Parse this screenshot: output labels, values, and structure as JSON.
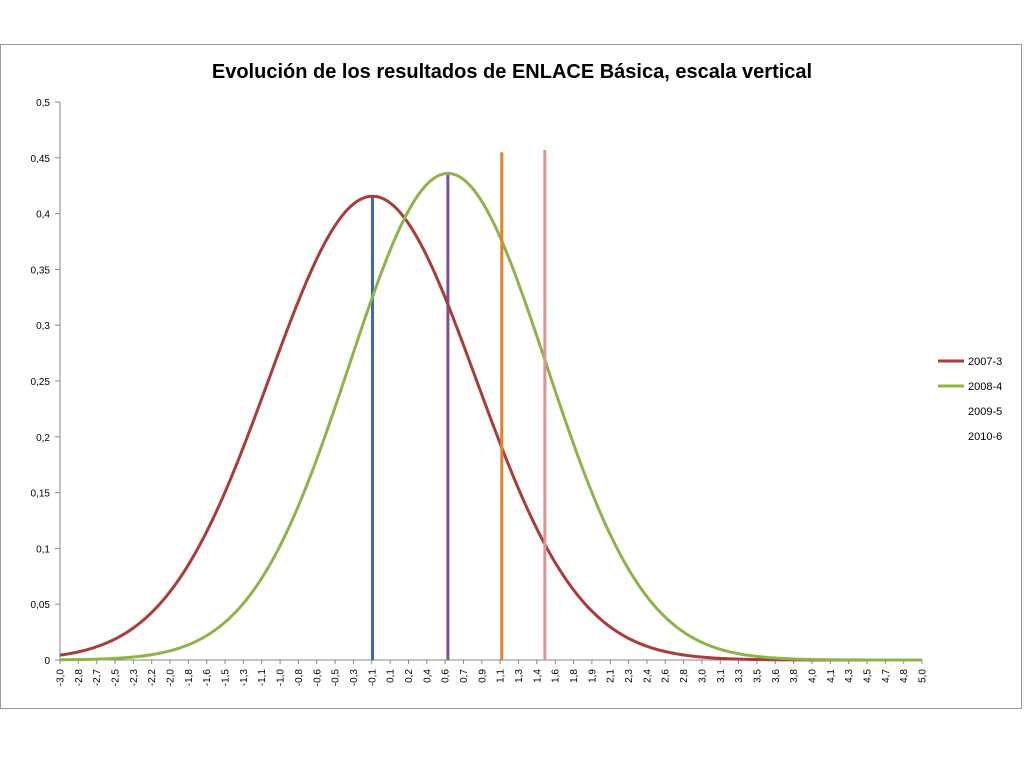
{
  "chart_data": {
    "type": "line",
    "title": "Evolución de los resultados de ENLACE Básica, escala vertical",
    "xlabel": "",
    "ylabel": "",
    "xlim": [
      -3.0,
      5.0
    ],
    "ylim": [
      0,
      0.5
    ],
    "y_ticks": [
      "0",
      "0,05",
      "0,1",
      "0,15",
      "0,2",
      "0,25",
      "0,3",
      "0,35",
      "0,4",
      "0,45",
      "0,5"
    ],
    "x_ticks": [
      "-3,0",
      "-2,8",
      "-2,7",
      "-2,5",
      "-2,3",
      "-2,2",
      "-2,0",
      "-1,8",
      "-1,6",
      "-1,5",
      "-1,3",
      "-1,1",
      "-1,0",
      "-0,8",
      "-0,6",
      "-0,5",
      "-0,3",
      "-0,1",
      "0,1",
      "0,2",
      "0,4",
      "0,6",
      "0,7",
      "0,9",
      "1,1",
      "1,3",
      "1,4",
      "1,6",
      "1,8",
      "1,9",
      "2,1",
      "2,3",
      "2,4",
      "2,6",
      "2,8",
      "3,0",
      "3,1",
      "3,3",
      "3,5",
      "3,6",
      "3,8",
      "4,0",
      "4,1",
      "4,3",
      "4,5",
      "4,7",
      "4,8",
      "5,0"
    ],
    "grid": false,
    "legend_position": "right",
    "series": [
      {
        "name": "2007-3",
        "kind": "normal-curve",
        "mean": -0.1,
        "sd": 0.96,
        "color": "#a83d3b"
      },
      {
        "name": "2008-4",
        "kind": "normal-curve",
        "mean": 0.6,
        "sd": 0.915,
        "color": "#8fb34a"
      },
      {
        "name": "2009-5",
        "kind": "vertical-line",
        "x": 1.1,
        "y_top": 0.455,
        "color": "#e6802a"
      },
      {
        "name": "2010-6",
        "kind": "vertical-line",
        "x": 1.5,
        "y_top": 0.457,
        "color": "#d99494"
      }
    ],
    "reference_lines": [
      {
        "x": -0.1,
        "y_top": 0.415,
        "color": "#3d67b0"
      },
      {
        "x": 0.6,
        "y_top": 0.436,
        "color": "#7a4f9b"
      }
    ],
    "legend": [
      {
        "label": "2007-3",
        "color": "#a83d3b",
        "swatch": true
      },
      {
        "label": "2008-4",
        "color": "#8fb34a",
        "swatch": true
      },
      {
        "label": "2009-5",
        "color": "#e6802a",
        "swatch": false
      },
      {
        "label": "2010-6",
        "color": "#d99494",
        "swatch": false
      }
    ]
  }
}
